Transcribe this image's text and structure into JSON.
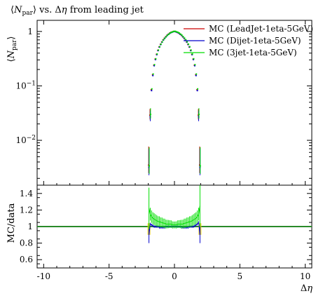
{
  "chart_data": {
    "type": "scatter",
    "title": "⟨N_par⟩ vs. Δη from leading jet",
    "title_parts": {
      "pre": "⟨",
      "var": "N",
      "sub": "par",
      "post": "⟩ vs. Δ",
      "eta": "η",
      "tail": " from leading jet"
    },
    "xlabel": "Δη",
    "xlabel_parts": {
      "delta": "Δ",
      "eta": "η"
    },
    "ylabel_main": "⟨N_par⟩",
    "ylabel_main_parts": {
      "open": "⟨",
      "var": "N",
      "sub": "par",
      "close": "⟩"
    },
    "ylabel_ratio": "MC/data",
    "xlim": [
      -10.5,
      10.5
    ],
    "ylim_main": [
      0.0015,
      1.6
    ],
    "yscale_main": "log",
    "ylim_ratio": [
      0.5,
      1.5
    ],
    "xticks": [
      {
        "value": -10,
        "label": "-10"
      },
      {
        "value": -5,
        "label": "-5"
      },
      {
        "value": 0,
        "label": "0"
      },
      {
        "value": 5,
        "label": "5"
      },
      {
        "value": 10,
        "label": "10"
      }
    ],
    "yticks_main": [
      {
        "value": 1,
        "base": "1",
        "exp": ""
      },
      {
        "value": 0.1,
        "base": "10",
        "exp": "−1"
      },
      {
        "value": 0.01,
        "base": "10",
        "exp": "−2"
      }
    ],
    "yticks_ratio": [
      {
        "value": 0.6,
        "label": "0.6"
      },
      {
        "value": 0.8,
        "label": "0.8"
      },
      {
        "value": 1.0,
        "label": "1"
      },
      {
        "value": 1.2,
        "label": "1.2"
      },
      {
        "value": 1.4,
        "label": "1.4"
      }
    ],
    "legend_position": "top-right",
    "x": [
      -1.95,
      -1.85,
      -1.75,
      -1.65,
      -1.55,
      -1.45,
      -1.35,
      -1.25,
      -1.15,
      -1.05,
      -0.95,
      -0.85,
      -0.75,
      -0.65,
      -0.55,
      -0.45,
      -0.35,
      -0.25,
      -0.15,
      -0.05,
      0.05,
      0.15,
      0.25,
      0.35,
      0.45,
      0.55,
      0.65,
      0.75,
      0.85,
      0.95,
      1.05,
      1.15,
      1.25,
      1.35,
      1.45,
      1.55,
      1.65,
      1.75,
      1.85,
      1.95
    ],
    "series": [
      {
        "name": "MC (LeadJet-1eta-5GeV)",
        "color": "#cc0000",
        "values": [
          0.0035,
          0.029,
          0.085,
          0.16,
          0.24,
          0.31,
          0.38,
          0.45,
          0.52,
          0.58,
          0.64,
          0.7,
          0.75,
          0.8,
          0.85,
          0.89,
          0.93,
          0.96,
          0.98,
          1.0,
          1.0,
          0.98,
          0.96,
          0.93,
          0.89,
          0.85,
          0.8,
          0.75,
          0.7,
          0.64,
          0.58,
          0.52,
          0.45,
          0.38,
          0.31,
          0.24,
          0.16,
          0.085,
          0.029,
          0.0035
        ],
        "ratio": [
          0.93,
          1.0,
          1.0,
          1.0,
          1.0,
          1.0,
          1.0,
          1.0,
          1.0,
          1.0,
          1.0,
          1.0,
          1.0,
          1.0,
          1.0,
          1.0,
          1.0,
          1.0,
          1.0,
          1.0,
          1.0,
          1.0,
          1.0,
          1.0,
          1.0,
          1.0,
          1.0,
          1.0,
          1.0,
          1.0,
          1.0,
          1.0,
          1.0,
          1.0,
          1.0,
          1.0,
          1.0,
          1.0,
          1.0,
          0.93
        ]
      },
      {
        "name": "MC (Dijet-1eta-5GeV)",
        "color": "#0000cc",
        "values": [
          0.0032,
          0.027,
          0.082,
          0.155,
          0.235,
          0.305,
          0.375,
          0.445,
          0.515,
          0.575,
          0.635,
          0.695,
          0.745,
          0.795,
          0.845,
          0.885,
          0.925,
          0.955,
          0.975,
          0.995,
          0.995,
          0.975,
          0.955,
          0.925,
          0.885,
          0.845,
          0.795,
          0.745,
          0.695,
          0.635,
          0.575,
          0.515,
          0.445,
          0.375,
          0.305,
          0.235,
          0.155,
          0.082,
          0.027,
          0.0032
        ],
        "ratio": [
          0.9,
          1.03,
          1.02,
          1.01,
          1.0,
          1.0,
          1.0,
          1.0,
          0.99,
          0.99,
          0.99,
          0.99,
          0.99,
          1.0,
          1.0,
          1.0,
          1.0,
          1.0,
          1.0,
          1.0,
          1.0,
          1.0,
          1.0,
          1.0,
          1.0,
          0.99,
          0.99,
          0.99,
          0.99,
          0.99,
          0.99,
          1.0,
          1.0,
          1.0,
          1.0,
          1.01,
          1.02,
          1.03,
          1.05,
          0.9
        ]
      },
      {
        "name": "MC (3jet-1eta-5GeV)",
        "color": "#00dd00",
        "values": [
          0.0034,
          0.03,
          0.088,
          0.165,
          0.245,
          0.315,
          0.385,
          0.455,
          0.525,
          0.585,
          0.645,
          0.705,
          0.755,
          0.805,
          0.855,
          0.895,
          0.935,
          0.965,
          0.985,
          1.005,
          1.005,
          0.985,
          0.965,
          0.935,
          0.895,
          0.855,
          0.805,
          0.755,
          0.705,
          0.645,
          0.585,
          0.525,
          0.455,
          0.385,
          0.315,
          0.245,
          0.165,
          0.088,
          0.03,
          0.0034
        ],
        "ratio": [
          1.22,
          1.15,
          1.12,
          1.1,
          1.09,
          1.08,
          1.07,
          1.06,
          1.06,
          1.05,
          1.05,
          1.04,
          1.04,
          1.03,
          1.03,
          1.03,
          1.03,
          1.03,
          1.02,
          1.02,
          1.02,
          1.02,
          1.03,
          1.03,
          1.03,
          1.03,
          1.03,
          1.04,
          1.04,
          1.05,
          1.05,
          1.06,
          1.06,
          1.07,
          1.08,
          1.09,
          1.1,
          1.12,
          1.15,
          1.25
        ]
      }
    ],
    "ratio_reference": {
      "value": 1.0,
      "color": "#2a8a2a"
    },
    "ratio_edge_band": {
      "color": "#e6c800"
    }
  }
}
